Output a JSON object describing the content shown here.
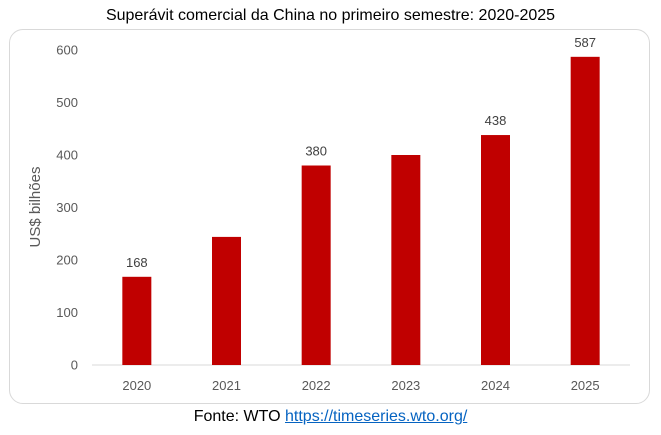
{
  "chart_data": {
    "type": "bar",
    "title": "Superávit comercial da China no primeiro semestre: 2020-2025",
    "xlabel": "",
    "ylabel": "US$ bilhões",
    "categories": [
      "2020",
      "2021",
      "2022",
      "2023",
      "2024",
      "2025"
    ],
    "values": [
      168,
      244,
      380,
      400,
      438,
      587
    ],
    "data_labels": [
      "168",
      "",
      "380",
      "",
      "438",
      "587"
    ],
    "ylim": [
      0,
      600
    ],
    "yticks": [
      0,
      100,
      200,
      300,
      400,
      500,
      600
    ],
    "grid": false,
    "legend": "none",
    "bar_color": "#c00000"
  },
  "source": {
    "prefix": "Fonte: WTO",
    "link_text": "https://timeseries.wto.org/"
  }
}
